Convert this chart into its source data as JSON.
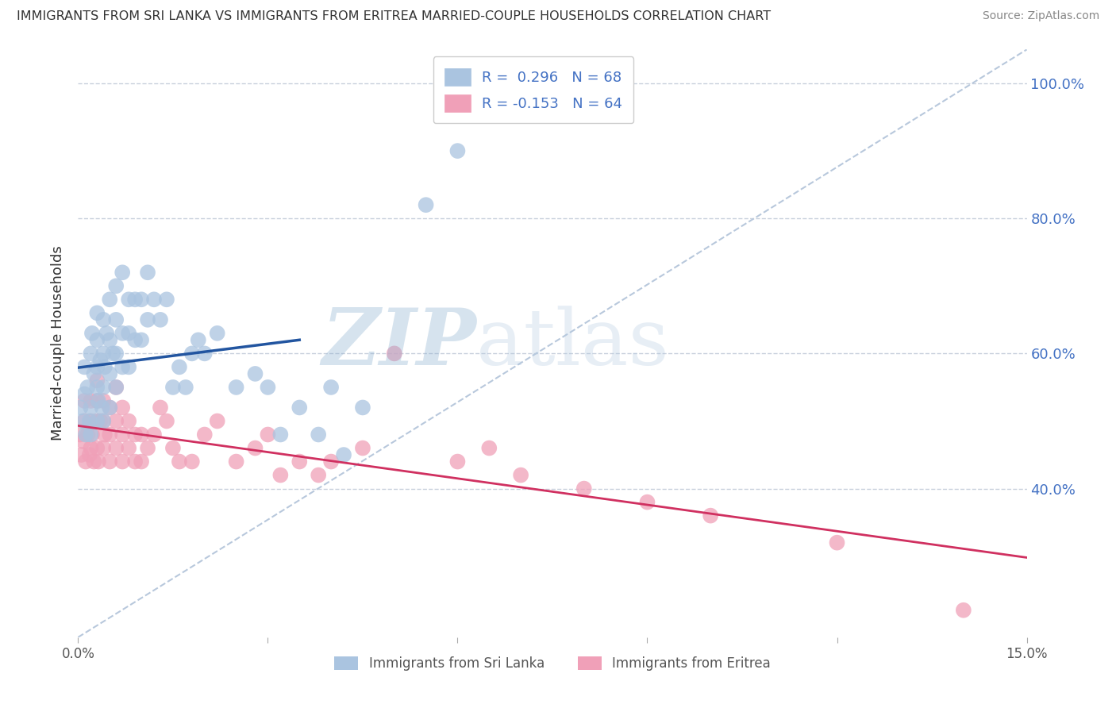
{
  "title": "IMMIGRANTS FROM SRI LANKA VS IMMIGRANTS FROM ERITREA MARRIED-COUPLE HOUSEHOLDS CORRELATION CHART",
  "source": "Source: ZipAtlas.com",
  "ylabel": "Married-couple Households",
  "xlim": [
    0.0,
    0.15
  ],
  "ylim": [
    0.18,
    1.05
  ],
  "right_yticks": [
    1.0,
    0.8,
    0.6,
    0.4
  ],
  "right_yticklabels": [
    "100.0%",
    "80.0%",
    "60.0%",
    "40.0%"
  ],
  "background_color": "#ffffff",
  "watermark": "ZIPatlas",
  "sri_lanka": {
    "color": "#aac4e0",
    "border_color": "#7aaad0",
    "R": 0.296,
    "N": 68,
    "label": "Immigrants from Sri Lanka",
    "line_color": "#2255a0",
    "x": [
      0.0004,
      0.0008,
      0.001,
      0.001,
      0.0012,
      0.0015,
      0.0018,
      0.002,
      0.002,
      0.002,
      0.0022,
      0.0025,
      0.003,
      0.003,
      0.003,
      0.003,
      0.003,
      0.0032,
      0.0035,
      0.0038,
      0.004,
      0.004,
      0.004,
      0.004,
      0.0042,
      0.0045,
      0.005,
      0.005,
      0.005,
      0.005,
      0.0055,
      0.006,
      0.006,
      0.006,
      0.006,
      0.007,
      0.007,
      0.007,
      0.008,
      0.008,
      0.008,
      0.009,
      0.009,
      0.01,
      0.01,
      0.011,
      0.011,
      0.012,
      0.013,
      0.014,
      0.015,
      0.016,
      0.017,
      0.018,
      0.019,
      0.02,
      0.022,
      0.025,
      0.028,
      0.03,
      0.032,
      0.035,
      0.038,
      0.04,
      0.042,
      0.045,
      0.055,
      0.06
    ],
    "y": [
      0.52,
      0.5,
      0.54,
      0.58,
      0.48,
      0.55,
      0.5,
      0.48,
      0.52,
      0.6,
      0.63,
      0.57,
      0.5,
      0.55,
      0.58,
      0.62,
      0.66,
      0.53,
      0.59,
      0.52,
      0.5,
      0.55,
      0.6,
      0.65,
      0.58,
      0.63,
      0.52,
      0.57,
      0.62,
      0.68,
      0.6,
      0.55,
      0.6,
      0.65,
      0.7,
      0.58,
      0.63,
      0.72,
      0.58,
      0.63,
      0.68,
      0.62,
      0.68,
      0.62,
      0.68,
      0.65,
      0.72,
      0.68,
      0.65,
      0.68,
      0.55,
      0.58,
      0.55,
      0.6,
      0.62,
      0.6,
      0.63,
      0.55,
      0.57,
      0.55,
      0.48,
      0.52,
      0.48,
      0.55,
      0.45,
      0.52,
      0.82,
      0.9
    ]
  },
  "eritrea": {
    "color": "#f0a0b8",
    "border_color": "#e07090",
    "R": -0.153,
    "N": 64,
    "label": "Immigrants from Eritrea",
    "line_color": "#d03060",
    "x": [
      0.0003,
      0.0005,
      0.0008,
      0.001,
      0.001,
      0.0012,
      0.0015,
      0.0018,
      0.002,
      0.002,
      0.002,
      0.0022,
      0.0025,
      0.003,
      0.003,
      0.003,
      0.003,
      0.0032,
      0.0035,
      0.004,
      0.004,
      0.004,
      0.0042,
      0.005,
      0.005,
      0.005,
      0.006,
      0.006,
      0.006,
      0.007,
      0.007,
      0.007,
      0.008,
      0.008,
      0.009,
      0.009,
      0.01,
      0.01,
      0.011,
      0.012,
      0.013,
      0.014,
      0.015,
      0.016,
      0.018,
      0.02,
      0.022,
      0.025,
      0.028,
      0.03,
      0.032,
      0.035,
      0.038,
      0.04,
      0.045,
      0.05,
      0.06,
      0.065,
      0.07,
      0.08,
      0.09,
      0.1,
      0.12,
      0.14
    ],
    "y": [
      0.48,
      0.45,
      0.47,
      0.5,
      0.53,
      0.44,
      0.48,
      0.45,
      0.46,
      0.5,
      0.53,
      0.48,
      0.44,
      0.46,
      0.5,
      0.53,
      0.56,
      0.44,
      0.5,
      0.46,
      0.5,
      0.53,
      0.48,
      0.44,
      0.48,
      0.52,
      0.46,
      0.5,
      0.55,
      0.44,
      0.48,
      0.52,
      0.46,
      0.5,
      0.44,
      0.48,
      0.44,
      0.48,
      0.46,
      0.48,
      0.52,
      0.5,
      0.46,
      0.44,
      0.44,
      0.48,
      0.5,
      0.44,
      0.46,
      0.48,
      0.42,
      0.44,
      0.42,
      0.44,
      0.46,
      0.6,
      0.44,
      0.46,
      0.42,
      0.4,
      0.38,
      0.36,
      0.32,
      0.22
    ]
  },
  "legend_box_color_sri": "#aac4e0",
  "legend_box_color_eri": "#f0a0b8",
  "legend_color": "#4472c4",
  "legend_R_sri": "R =  0.296",
  "legend_N_sri": "N = 68",
  "legend_R_eri": "R = -0.153",
  "legend_N_eri": "N = 64"
}
